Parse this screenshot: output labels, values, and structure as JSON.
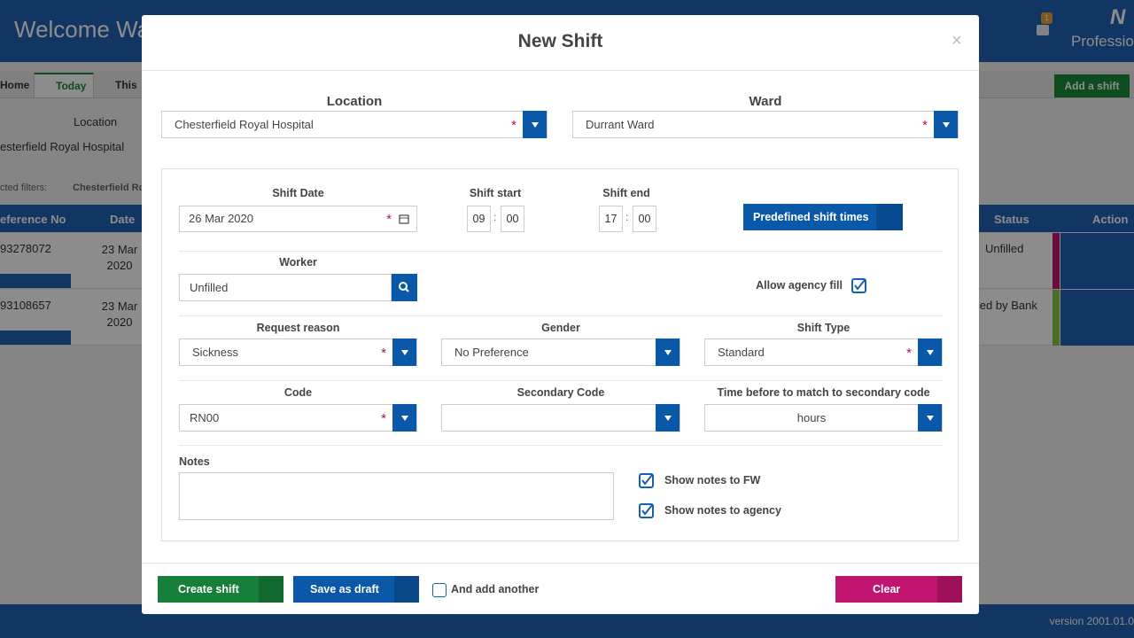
{
  "background": {
    "header_title": "Welcome Wa",
    "header_brand": "Professio",
    "header_logo": "N",
    "notification_count": "1",
    "tabs": [
      "Home",
      "Today",
      "This"
    ],
    "add_button": "Add a shift",
    "location_label": "Location",
    "location_value": "esterfield Royal Hospital",
    "filters_label": "cted filters:",
    "filter_chip": "Chesterfield Ro",
    "table": {
      "headers": [
        "eference No",
        "Date",
        "Status",
        "Action"
      ],
      "rows": [
        [
          "93278072",
          "23 Mar 2020",
          "Unfilled"
        ],
        [
          "93108657",
          "23 Mar 2020",
          "lled by Bank"
        ]
      ]
    },
    "version": "version 2001.01.0"
  },
  "modal": {
    "title": "New Shift",
    "close": "×",
    "required_mark": "*",
    "time_separator": ":",
    "location": {
      "label": "Location",
      "value": "Chesterfield Royal Hospital"
    },
    "ward": {
      "label": "Ward",
      "value": "Durrant Ward"
    },
    "shift_date": {
      "label": "Shift Date",
      "value": "26 Mar 2020"
    },
    "shift_start": {
      "label": "Shift start",
      "hours": "09",
      "minutes": "00"
    },
    "shift_end": {
      "label": "Shift end",
      "hours": "17",
      "minutes": "00"
    },
    "predefined_button": "Predefined shift times",
    "worker": {
      "label": "Worker",
      "value": "Unfilled"
    },
    "allow_agency_fill": "Allow agency fill",
    "request_reason": {
      "label": "Request reason",
      "value": "Sickness"
    },
    "gender": {
      "label": "Gender",
      "value": "No Preference"
    },
    "shift_type": {
      "label": "Shift Type",
      "value": "Standard"
    },
    "code": {
      "label": "Code",
      "value": "RN00"
    },
    "secondary_code": {
      "label": "Secondary Code"
    },
    "time_before": {
      "label": "Time before to match to secondary code",
      "value": "hours"
    },
    "notes": {
      "label": "Notes"
    },
    "show_notes_fw": "Show notes to FW",
    "show_notes_agency": "Show notes to agency",
    "buttons": {
      "create": "Create shift",
      "draft": "Save as draft",
      "add_another": "And add another",
      "clear": "Clear"
    }
  }
}
